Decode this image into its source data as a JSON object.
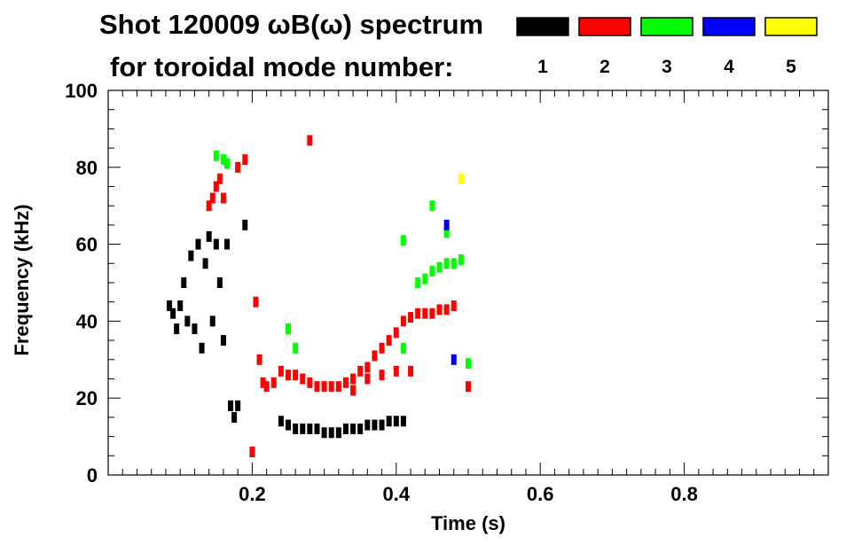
{
  "chart_data": {
    "type": "scatter",
    "title_line1": "Shot 120009 ωB(ω) spectrum",
    "title_line2": "for toroidal mode number:",
    "xlabel": "Time (s)",
    "ylabel": "Frequency (kHz)",
    "xlim": [
      0,
      1.0
    ],
    "ylim": [
      0,
      100
    ],
    "xticks": [
      "0.2",
      "0.4",
      "0.6",
      "0.8"
    ],
    "xtick_values": [
      0.2,
      0.4,
      0.6,
      0.8
    ],
    "yticks": [
      "0",
      "20",
      "40",
      "60",
      "80",
      "100"
    ],
    "ytick_values": [
      0,
      20,
      40,
      60,
      80,
      100
    ],
    "legend_placement": "top-right",
    "series": [
      {
        "name": "1",
        "color": "#000000",
        "points": [
          [
            0.085,
            44
          ],
          [
            0.09,
            42
          ],
          [
            0.095,
            38
          ],
          [
            0.1,
            44
          ],
          [
            0.105,
            50
          ],
          [
            0.11,
            40
          ],
          [
            0.115,
            57
          ],
          [
            0.12,
            38
          ],
          [
            0.125,
            60
          ],
          [
            0.13,
            33
          ],
          [
            0.135,
            55
          ],
          [
            0.14,
            62
          ],
          [
            0.145,
            40
          ],
          [
            0.15,
            60
          ],
          [
            0.155,
            50
          ],
          [
            0.16,
            35
          ],
          [
            0.165,
            60
          ],
          [
            0.17,
            18
          ],
          [
            0.175,
            15
          ],
          [
            0.18,
            18
          ],
          [
            0.19,
            65
          ],
          [
            0.24,
            14
          ],
          [
            0.25,
            13
          ],
          [
            0.26,
            12
          ],
          [
            0.27,
            12
          ],
          [
            0.28,
            12
          ],
          [
            0.29,
            12
          ],
          [
            0.3,
            11
          ],
          [
            0.31,
            11
          ],
          [
            0.32,
            11
          ],
          [
            0.33,
            12
          ],
          [
            0.34,
            12
          ],
          [
            0.35,
            12
          ],
          [
            0.36,
            13
          ],
          [
            0.37,
            13
          ],
          [
            0.38,
            13
          ],
          [
            0.39,
            14
          ],
          [
            0.4,
            14
          ],
          [
            0.41,
            14
          ]
        ]
      },
      {
        "name": "2",
        "color": "#ff0000",
        "points": [
          [
            0.14,
            70
          ],
          [
            0.145,
            72
          ],
          [
            0.15,
            75
          ],
          [
            0.155,
            77
          ],
          [
            0.16,
            72
          ],
          [
            0.18,
            80
          ],
          [
            0.19,
            82
          ],
          [
            0.205,
            45
          ],
          [
            0.21,
            30
          ],
          [
            0.215,
            24
          ],
          [
            0.22,
            23
          ],
          [
            0.23,
            24
          ],
          [
            0.24,
            27
          ],
          [
            0.25,
            26
          ],
          [
            0.26,
            26
          ],
          [
            0.27,
            25
          ],
          [
            0.28,
            24
          ],
          [
            0.29,
            23
          ],
          [
            0.3,
            23
          ],
          [
            0.31,
            23
          ],
          [
            0.32,
            23
          ],
          [
            0.33,
            24
          ],
          [
            0.34,
            25
          ],
          [
            0.35,
            27
          ],
          [
            0.36,
            28
          ],
          [
            0.37,
            31
          ],
          [
            0.38,
            33
          ],
          [
            0.39,
            35
          ],
          [
            0.4,
            37
          ],
          [
            0.41,
            40
          ],
          [
            0.42,
            41
          ],
          [
            0.43,
            42
          ],
          [
            0.44,
            42
          ],
          [
            0.45,
            42
          ],
          [
            0.46,
            43
          ],
          [
            0.47,
            43
          ],
          [
            0.48,
            44
          ],
          [
            0.34,
            22
          ],
          [
            0.36,
            25
          ],
          [
            0.38,
            26
          ],
          [
            0.4,
            27
          ],
          [
            0.42,
            27
          ],
          [
            0.28,
            87
          ],
          [
            0.2,
            6
          ],
          [
            0.5,
            23
          ]
        ]
      },
      {
        "name": "3",
        "color": "#00ff00",
        "points": [
          [
            0.15,
            83
          ],
          [
            0.16,
            82
          ],
          [
            0.165,
            81
          ],
          [
            0.25,
            38
          ],
          [
            0.26,
            33
          ],
          [
            0.41,
            33
          ],
          [
            0.43,
            50
          ],
          [
            0.44,
            51
          ],
          [
            0.45,
            53
          ],
          [
            0.46,
            54
          ],
          [
            0.47,
            55
          ],
          [
            0.48,
            55
          ],
          [
            0.49,
            56
          ],
          [
            0.5,
            29
          ],
          [
            0.41,
            61
          ],
          [
            0.45,
            70
          ],
          [
            0.47,
            63
          ]
        ]
      },
      {
        "name": "4",
        "color": "#0000ff",
        "points": [
          [
            0.48,
            30
          ],
          [
            0.47,
            65
          ]
        ]
      },
      {
        "name": "5",
        "color": "#ffff00",
        "points": [
          [
            0.49,
            77
          ]
        ]
      }
    ]
  }
}
